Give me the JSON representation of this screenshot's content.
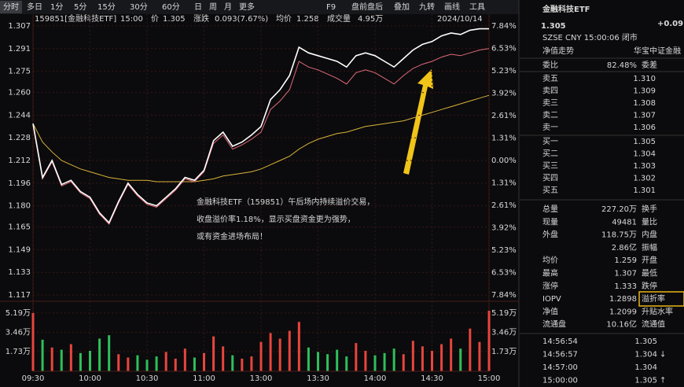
{
  "toolbar": {
    "left": [
      "分时",
      "多日",
      "1分",
      "5分",
      "15分",
      "30分",
      "60分",
      "日",
      "周",
      "月",
      "更多"
    ],
    "right": [
      "F9",
      "盘前盘后",
      "叠加",
      "九转",
      "画线",
      "工具"
    ]
  },
  "info": {
    "code": "159851[金融科技ETF]",
    "time": "15:00",
    "price_label": "价",
    "price": "1.305",
    "change_label": "涨跌",
    "change": "0.093(7.67%)",
    "avg_label": "均价",
    "avg": "1.258",
    "vol_label": "成交量",
    "vol": "4.95万",
    "date": "2024/10/14"
  },
  "chart_data": [
    {
      "type": "line",
      "x": [
        0,
        5,
        10,
        15,
        20,
        25,
        30,
        35,
        40,
        45,
        50,
        55,
        60,
        65,
        70,
        75,
        80,
        85,
        90,
        95,
        100,
        105,
        110,
        115,
        120,
        125,
        130,
        135,
        140,
        145,
        150,
        155,
        160,
        165,
        170,
        175,
        180,
        185,
        190,
        195,
        200,
        205,
        210,
        215,
        220,
        225,
        230,
        235,
        240
      ],
      "series": [
        {
          "color": "#ffffff",
          "values": [
            1.238,
            1.2,
            1.212,
            1.195,
            1.198,
            1.19,
            1.186,
            1.175,
            1.168,
            1.183,
            1.196,
            1.188,
            1.182,
            1.18,
            1.186,
            1.192,
            1.2,
            1.198,
            1.205,
            1.226,
            1.232,
            1.222,
            1.225,
            1.23,
            1.236,
            1.255,
            1.262,
            1.272,
            1.292,
            1.288,
            1.286,
            1.284,
            1.282,
            1.278,
            1.286,
            1.288,
            1.286,
            1.282,
            1.278,
            1.284,
            1.29,
            1.294,
            1.296,
            1.3,
            1.302,
            1.301,
            1.304,
            1.305,
            1.305
          ]
        },
        {
          "color": "#e06a7a",
          "values": [
            1.237,
            1.199,
            1.211,
            1.194,
            1.197,
            1.189,
            1.185,
            1.174,
            1.167,
            1.182,
            1.195,
            1.187,
            1.181,
            1.179,
            1.185,
            1.191,
            1.199,
            1.197,
            1.204,
            1.224,
            1.23,
            1.22,
            1.223,
            1.227,
            1.232,
            1.248,
            1.254,
            1.262,
            1.282,
            1.278,
            1.276,
            1.273,
            1.27,
            1.266,
            1.274,
            1.276,
            1.274,
            1.27,
            1.266,
            1.272,
            1.277,
            1.28,
            1.282,
            1.285,
            1.287,
            1.286,
            1.288,
            1.29,
            1.291
          ]
        },
        {
          "color": "#d9b23a",
          "values": [
            1.238,
            1.225,
            1.218,
            1.212,
            1.209,
            1.206,
            1.204,
            1.202,
            1.2,
            1.199,
            1.198,
            1.198,
            1.198,
            1.197,
            1.197,
            1.197,
            1.197,
            1.197,
            1.198,
            1.199,
            1.201,
            1.202,
            1.203,
            1.204,
            1.206,
            1.209,
            1.212,
            1.215,
            1.22,
            1.224,
            1.227,
            1.229,
            1.231,
            1.232,
            1.234,
            1.236,
            1.237,
            1.238,
            1.239,
            1.24,
            1.242,
            1.244,
            1.246,
            1.248,
            1.25,
            1.252,
            1.254,
            1.256,
            1.258
          ]
        }
      ],
      "ylim": [
        1.117,
        1.307
      ],
      "yticks": [
        1.307,
        1.291,
        1.275,
        {
          "value": 1.26,
          "label": "1.260"
        },
        1.244,
        1.228,
        1.212,
        1.196,
        {
          "value": 1.18,
          "label": "1.180"
        },
        1.165,
        1.149,
        1.133,
        1.117
      ],
      "y2lim": [
        -7.84,
        7.84
      ],
      "y2ticks": [
        {
          "value": 7.84,
          "label": "7.84%"
        },
        {
          "value": 6.53,
          "label": "6.53%"
        },
        {
          "value": 5.23,
          "label": "5.23%"
        },
        {
          "value": 3.92,
          "label": "3.92%"
        },
        {
          "value": 2.61,
          "label": "2.61%"
        },
        {
          "value": 1.31,
          "label": "1.31%"
        },
        {
          "value": 0,
          "label": "0.00%"
        },
        {
          "value": -1.31,
          "label": "1.31%"
        },
        {
          "value": -2.61,
          "label": "2.61%"
        },
        {
          "value": -3.92,
          "label": "3.92%"
        },
        {
          "value": -5.23,
          "label": "5.23%"
        },
        {
          "value": -6.53,
          "label": "6.53%"
        },
        {
          "value": -7.84,
          "label": "7.84%"
        }
      ],
      "xlim": [
        0,
        240
      ],
      "xticks": [
        {
          "value": 0,
          "label": "09:30"
        },
        {
          "value": 30,
          "label": "10:00"
        },
        {
          "value": 60,
          "label": "10:30"
        },
        {
          "value": 90,
          "label": "11:00"
        },
        {
          "value": 120,
          "label": "13:00"
        },
        {
          "value": 150,
          "label": "13:30"
        },
        {
          "value": 180,
          "label": "14:00"
        },
        {
          "value": 210,
          "label": "14:30"
        },
        {
          "value": 240,
          "label": "15:00"
        }
      ],
      "grid": true
    },
    {
      "type": "bar",
      "x": [
        0,
        5,
        10,
        15,
        20,
        25,
        30,
        35,
        40,
        45,
        50,
        55,
        60,
        65,
        70,
        75,
        80,
        85,
        90,
        95,
        100,
        105,
        110,
        115,
        120,
        125,
        130,
        135,
        140,
        145,
        150,
        155,
        160,
        165,
        170,
        175,
        180,
        185,
        190,
        195,
        200,
        205,
        210,
        215,
        220,
        225,
        230,
        235,
        240
      ],
      "values": [
        5.2,
        2.8,
        2.1,
        1.9,
        2.4,
        1.6,
        1.8,
        2.9,
        3.2,
        1.5,
        1.2,
        1.4,
        1.0,
        1.3,
        1.7,
        1.1,
        2.0,
        1.2,
        1.6,
        3.1,
        2.2,
        1.4,
        1.1,
        1.3,
        2.6,
        3.4,
        2.9,
        3.6,
        4.4,
        2.1,
        1.7,
        1.5,
        1.9,
        1.3,
        2.5,
        1.8,
        1.4,
        1.6,
        2.0,
        1.5,
        2.7,
        2.2,
        1.8,
        2.4,
        2.9,
        2.0,
        3.8,
        2.6,
        5.4
      ],
      "colors": [
        "#e8453c",
        "#2fbf5a",
        "#e8453c",
        "#2fbf5a",
        "#e8453c",
        "#2fbf5a",
        "#2fbf5a",
        "#2fbf5a",
        "#2fbf5a",
        "#e8453c",
        "#e8453c",
        "#2fbf5a",
        "#2fbf5a",
        "#2fbf5a",
        "#e8453c",
        "#e8453c",
        "#e8453c",
        "#2fbf5a",
        "#e8453c",
        "#e8453c",
        "#e8453c",
        "#2fbf5a",
        "#e8453c",
        "#e8453c",
        "#e8453c",
        "#e8453c",
        "#e8453c",
        "#e8453c",
        "#e8453c",
        "#2fbf5a",
        "#2fbf5a",
        "#2fbf5a",
        "#2fbf5a",
        "#2fbf5a",
        "#e8453c",
        "#e8453c",
        "#2fbf5a",
        "#2fbf5a",
        "#2fbf5a",
        "#e8453c",
        "#e8453c",
        "#e8453c",
        "#e8453c",
        "#e8453c",
        "#e8453c",
        "#2fbf5a",
        "#e8453c",
        "#e8453c",
        "#e8453c"
      ],
      "xlim": [
        0,
        240
      ],
      "ylim": [
        0,
        5.9
      ],
      "yticks": [
        {
          "value": 5.19,
          "label": "5.19万"
        },
        {
          "value": 3.46,
          "label": "3.46万"
        },
        {
          "value": 1.73,
          "label": "1.73万"
        }
      ]
    }
  ],
  "annotation": [
    "金融科技ETF（159851）午后场内持续溢价交易，",
    "收盘溢价率1.18%，显示买盘资金更为强势，",
    "或有资金进场布局！"
  ],
  "panel": {
    "title": "金融科技ETF",
    "price": "1.305",
    "change": "+0.09",
    "meta": "SZSE  CNY  15:00:06  闭市",
    "nav": [
      "净值走势",
      "华宝中证金融"
    ],
    "ratio": [
      "委比",
      "82.48%",
      "委差"
    ],
    "sells": [
      [
        "卖五",
        "1.310"
      ],
      [
        "卖四",
        "1.309"
      ],
      [
        "卖三",
        "1.308"
      ],
      [
        "卖二",
        "1.307"
      ],
      [
        "卖一",
        "1.306"
      ]
    ],
    "buys": [
      [
        "买一",
        "1.305"
      ],
      [
        "买二",
        "1.304"
      ],
      [
        "买三",
        "1.303"
      ],
      [
        "买四",
        "1.302"
      ],
      [
        "买五",
        "1.301"
      ]
    ],
    "stats": [
      {
        "label": "总量",
        "value": "227.20万",
        "label2": "换手",
        "color": "#e6e6e6"
      },
      {
        "label": "现量",
        "value": "49481",
        "label2": "量比",
        "color": "#e6e6e6"
      },
      {
        "label": "外盘",
        "value": "118.75万",
        "label2": "内盘",
        "color": "#e8453c"
      },
      {
        "value": "2.86亿",
        "label2": "振幅",
        "color": "#e6e6e6"
      },
      {
        "label": "均价",
        "value": "1.259",
        "label2": "开盘",
        "color": "#e8453c"
      },
      {
        "label": "最高",
        "value": "1.307",
        "label2": "最低",
        "color": "#e8453c"
      },
      {
        "label": "涨停",
        "value": "1.333",
        "label2": "跌停",
        "color": "#e8453c"
      },
      {
        "label": "IOPV",
        "value": "1.2898",
        "label2": "溢折率",
        "color": "#e6e6e6"
      },
      {
        "label": "净值",
        "value": "1.2099",
        "label2": "升贴水率",
        "color": "#2fbf5a"
      },
      {
        "label": "流通盘",
        "value": "10.16亿",
        "label2": "流通值",
        "color": "#e6e6e6"
      }
    ],
    "trades": [
      {
        "time": "14:56:54",
        "price": "1.305"
      },
      {
        "time": "14:56:57",
        "price": "1.304",
        "arrow": "↓"
      },
      {
        "time": "14:57:00",
        "price": "1.304"
      },
      {
        "time": "15:00:00",
        "price": "1.305",
        "arrow": "↑"
      }
    ]
  }
}
